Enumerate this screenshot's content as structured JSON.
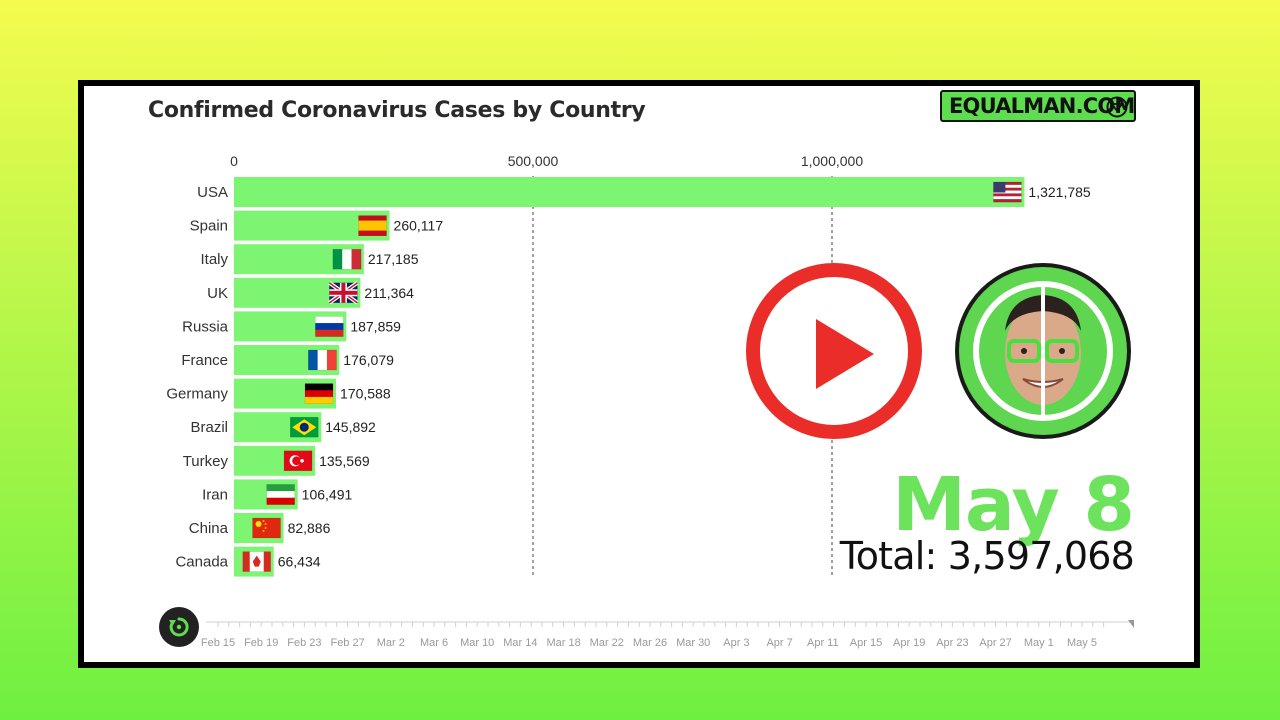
{
  "title": "Confirmed Coronavirus Cases by Country",
  "brand": {
    "text": "EQUALMAN.COM",
    "icon": "equalman-logo-icon"
  },
  "date_label": "May 8",
  "total_label": "Total: 3,597,068",
  "play_icon": "play-icon",
  "replay_icon": "replay-icon",
  "colors": {
    "bar": "#7df573",
    "brand": "#5edd4e",
    "date": "#6de35d",
    "play": "#ea2d28"
  },
  "chart_data": {
    "type": "bar",
    "orientation": "horizontal",
    "title": "Confirmed Coronavirus Cases by Country",
    "xlim": [
      0,
      1500000
    ],
    "x_ticks": [
      0,
      500000,
      1000000
    ],
    "x_tick_labels": [
      "0",
      "500,000",
      "1,000,000"
    ],
    "categories": [
      "USA",
      "Spain",
      "Italy",
      "UK",
      "Russia",
      "France",
      "Germany",
      "Brazil",
      "Turkey",
      "Iran",
      "China",
      "Canada"
    ],
    "values": [
      1321785,
      260117,
      217185,
      211364,
      187859,
      176079,
      170588,
      145892,
      135569,
      106491,
      82886,
      66434
    ],
    "value_labels": [
      "1,321,785",
      "260,117",
      "217,185",
      "211,364",
      "187,859",
      "176,079",
      "170,588",
      "145,892",
      "135,569",
      "106,491",
      "82,886",
      "66,434"
    ],
    "flags": [
      "us-flag-icon",
      "spain-flag-icon",
      "italy-flag-icon",
      "uk-flag-icon",
      "russia-flag-icon",
      "france-flag-icon",
      "germany-flag-icon",
      "brazil-flag-icon",
      "turkey-flag-icon",
      "iran-flag-icon",
      "china-flag-icon",
      "canada-flag-icon"
    ],
    "gridlines": "dashed",
    "timeline": {
      "labels": [
        "Feb 15",
        "Feb 19",
        "Feb 23",
        "Feb 27",
        "Mar 2",
        "Mar 6",
        "Mar 10",
        "Mar 14",
        "Mar 18",
        "Mar 22",
        "Mar 26",
        "Mar 30",
        "Apr 3",
        "Apr 7",
        "Apr 11",
        "Apr 15",
        "Apr 19",
        "Apr 23",
        "Apr 27",
        "May 1",
        "May 5"
      ],
      "current": "May 8"
    }
  }
}
